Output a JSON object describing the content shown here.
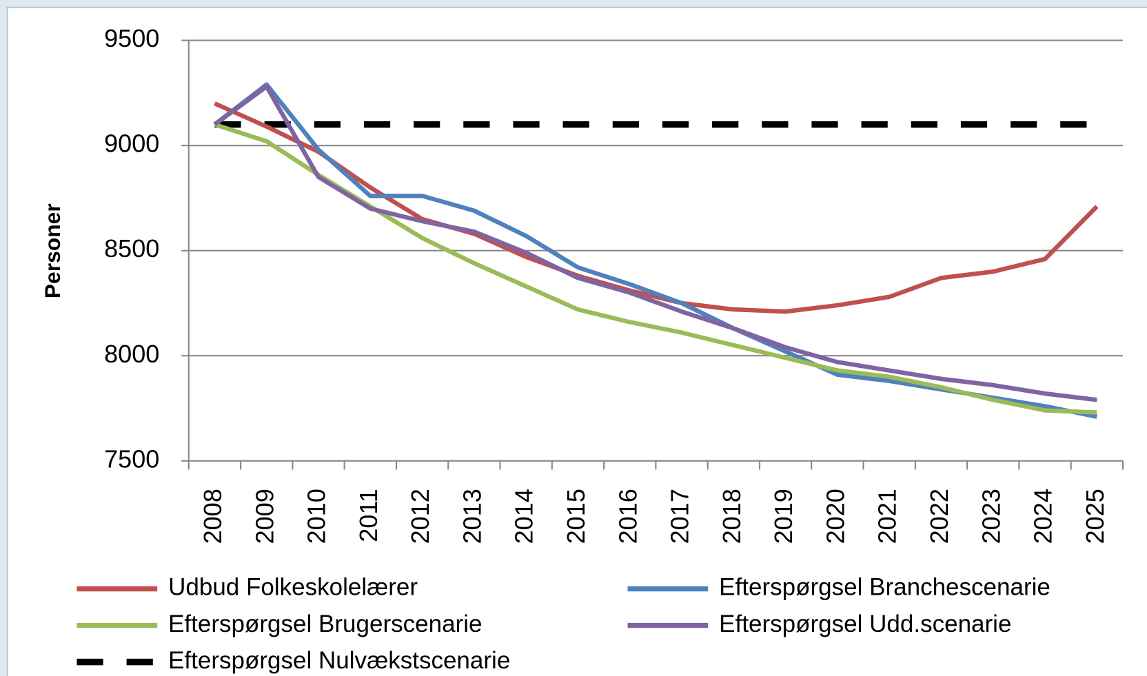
{
  "chart_data": {
    "type": "line",
    "ylabel": "Personer",
    "categories": [
      "2008",
      "2009",
      "2010",
      "2011",
      "2012",
      "2013",
      "2014",
      "2015",
      "2016",
      "2017",
      "2018",
      "2019",
      "2020",
      "2021",
      "2022",
      "2023",
      "2024",
      "2025"
    ],
    "ylim": [
      7500,
      9500
    ],
    "yticks": [
      7500,
      8000,
      8500,
      9000,
      9500
    ],
    "grid": true,
    "series": [
      {
        "name": "Udbud Folkeskolelærer",
        "color": "#c0504d",
        "values": [
          9200,
          9090,
          8970,
          8800,
          8650,
          8580,
          8470,
          8380,
          8310,
          8250,
          8220,
          8210,
          8240,
          8280,
          8370,
          8400,
          8460,
          8710
        ]
      },
      {
        "name": "Efterspørgsel Branchescenarie",
        "color": "#4f81bd",
        "values": [
          9100,
          9290,
          8980,
          8760,
          8760,
          8690,
          8570,
          8420,
          8340,
          8250,
          8130,
          8020,
          7910,
          7880,
          7840,
          7800,
          7760,
          7710
        ]
      },
      {
        "name": "Efterspørgsel Brugerscenarie",
        "color": "#9bbb59",
        "values": [
          9100,
          9020,
          8860,
          8710,
          8560,
          8440,
          8330,
          8220,
          8160,
          8110,
          8050,
          7990,
          7930,
          7900,
          7850,
          7790,
          7740,
          7730
        ]
      },
      {
        "name": "Efterspørgsel Udd.scenarie",
        "color": "#8064a2",
        "values": [
          9100,
          9280,
          8850,
          8700,
          8640,
          8590,
          8490,
          8370,
          8300,
          8210,
          8130,
          8040,
          7970,
          7930,
          7890,
          7860,
          7820,
          7790
        ]
      },
      {
        "name": "Efterspørgsel Nulvækstscenarie",
        "color": "#000000",
        "dashed": true,
        "values": [
          9100,
          9100,
          9100,
          9100,
          9100,
          9100,
          9100,
          9100,
          9100,
          9100,
          9100,
          9100,
          9100,
          9100,
          9100,
          9100,
          9100,
          9100
        ]
      }
    ]
  }
}
